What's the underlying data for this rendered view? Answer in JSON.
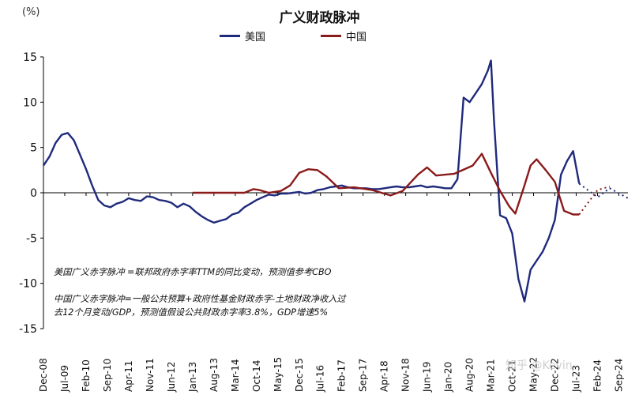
{
  "chart_data": {
    "type": "line",
    "title": "广义财政脉冲",
    "unit_label": "(%)",
    "ylim": [
      -15,
      15
    ],
    "y_ticks": [
      15,
      10,
      5,
      0,
      -5,
      -10,
      -15
    ],
    "x_ticks": [
      "Dec-08",
      "Jul-09",
      "Feb-10",
      "Sep-10",
      "Apr-11",
      "Nov-11",
      "Jun-12",
      "Jan-13",
      "Aug-13",
      "Mar-14",
      "Oct-14",
      "May-15",
      "Dec-15",
      "Jul-16",
      "Feb-17",
      "Sep-17",
      "Apr-18",
      "Nov-18",
      "Jun-19",
      "Jan-20",
      "Aug-20",
      "Mar-21",
      "Oct-21",
      "May-22",
      "Dec-22",
      "Jul-23",
      "Feb-24",
      "Sep-24"
    ],
    "x_range": [
      "2008-12",
      "2024-12"
    ],
    "grid": false,
    "legend_position": "top",
    "series": [
      {
        "name": "美国",
        "color": "#1f2a7c",
        "points": [
          [
            "2008-12",
            3.0
          ],
          [
            "2009-02",
            4.0
          ],
          [
            "2009-04",
            5.5
          ],
          [
            "2009-06",
            6.4
          ],
          [
            "2009-08",
            6.6
          ],
          [
            "2009-10",
            5.8
          ],
          [
            "2009-12",
            4.2
          ],
          [
            "2010-02",
            2.6
          ],
          [
            "2010-04",
            0.8
          ],
          [
            "2010-06",
            -0.8
          ],
          [
            "2010-08",
            -1.4
          ],
          [
            "2010-10",
            -1.6
          ],
          [
            "2010-12",
            -1.2
          ],
          [
            "2011-02",
            -1.0
          ],
          [
            "2011-04",
            -0.6
          ],
          [
            "2011-06",
            -0.8
          ],
          [
            "2011-08",
            -0.9
          ],
          [
            "2011-10",
            -0.4
          ],
          [
            "2011-12",
            -0.5
          ],
          [
            "2012-02",
            -0.8
          ],
          [
            "2012-04",
            -0.9
          ],
          [
            "2012-06",
            -1.1
          ],
          [
            "2012-08",
            -1.6
          ],
          [
            "2012-10",
            -1.2
          ],
          [
            "2012-12",
            -1.5
          ],
          [
            "2013-02",
            -2.1
          ],
          [
            "2013-04",
            -2.6
          ],
          [
            "2013-06",
            -3.0
          ],
          [
            "2013-08",
            -3.3
          ],
          [
            "2013-10",
            -3.1
          ],
          [
            "2013-12",
            -2.9
          ],
          [
            "2014-02",
            -2.4
          ],
          [
            "2014-04",
            -2.2
          ],
          [
            "2014-06",
            -1.6
          ],
          [
            "2014-08",
            -1.2
          ],
          [
            "2014-10",
            -0.8
          ],
          [
            "2014-12",
            -0.5
          ],
          [
            "2015-02",
            -0.2
          ],
          [
            "2015-04",
            -0.3
          ],
          [
            "2015-06",
            -0.1
          ],
          [
            "2015-08",
            -0.1
          ],
          [
            "2015-10",
            0.0
          ],
          [
            "2015-12",
            0.1
          ],
          [
            "2016-02",
            -0.1
          ],
          [
            "2016-04",
            0.0
          ],
          [
            "2016-06",
            0.3
          ],
          [
            "2016-08",
            0.4
          ],
          [
            "2016-10",
            0.6
          ],
          [
            "2016-12",
            0.7
          ],
          [
            "2017-02",
            0.8
          ],
          [
            "2017-04",
            0.6
          ],
          [
            "2017-06",
            0.5
          ],
          [
            "2017-08",
            0.5
          ],
          [
            "2017-10",
            0.5
          ],
          [
            "2017-12",
            0.4
          ],
          [
            "2018-02",
            0.4
          ],
          [
            "2018-04",
            0.5
          ],
          [
            "2018-06",
            0.6
          ],
          [
            "2018-08",
            0.7
          ],
          [
            "2018-10",
            0.6
          ],
          [
            "2018-12",
            0.6
          ],
          [
            "2019-02",
            0.7
          ],
          [
            "2019-04",
            0.8
          ],
          [
            "2019-06",
            0.6
          ],
          [
            "2019-08",
            0.7
          ],
          [
            "2019-10",
            0.6
          ],
          [
            "2019-12",
            0.5
          ],
          [
            "2020-02",
            0.5
          ],
          [
            "2020-04",
            1.5
          ],
          [
            "2020-06",
            10.5
          ],
          [
            "2020-08",
            10.0
          ],
          [
            "2020-10",
            11.0
          ],
          [
            "2020-12",
            12.0
          ],
          [
            "2021-02",
            13.5
          ],
          [
            "2021-03",
            14.6
          ],
          [
            "2021-04",
            8.0
          ],
          [
            "2021-06",
            -2.5
          ],
          [
            "2021-08",
            -2.8
          ],
          [
            "2021-10",
            -4.5
          ],
          [
            "2021-12",
            -9.5
          ],
          [
            "2022-02",
            -12.0
          ],
          [
            "2022-04",
            -8.5
          ],
          [
            "2022-06",
            -7.5
          ],
          [
            "2022-08",
            -6.5
          ],
          [
            "2022-10",
            -5.0
          ],
          [
            "2022-12",
            -3.0
          ],
          [
            "2023-02",
            2.0
          ],
          [
            "2023-04",
            3.5
          ],
          [
            "2023-06",
            4.6
          ],
          [
            "2023-08",
            1.0
          ]
        ]
      },
      {
        "name": "中国",
        "color": "#8b1a1a",
        "points": [
          [
            "2013-01",
            0.0
          ],
          [
            "2014-06",
            0.0
          ],
          [
            "2014-09",
            0.4
          ],
          [
            "2014-11",
            0.3
          ],
          [
            "2015-02",
            0.0
          ],
          [
            "2015-06",
            0.2
          ],
          [
            "2015-09",
            0.8
          ],
          [
            "2015-12",
            2.2
          ],
          [
            "2016-03",
            2.6
          ],
          [
            "2016-06",
            2.5
          ],
          [
            "2016-09",
            1.8
          ],
          [
            "2017-01",
            0.5
          ],
          [
            "2017-06",
            0.6
          ],
          [
            "2017-12",
            0.3
          ],
          [
            "2018-06",
            -0.3
          ],
          [
            "2018-10",
            0.2
          ],
          [
            "2019-03",
            2.0
          ],
          [
            "2019-06",
            2.8
          ],
          [
            "2019-09",
            1.9
          ],
          [
            "2020-03",
            2.1
          ],
          [
            "2020-09",
            3.0
          ],
          [
            "2020-12",
            4.3
          ],
          [
            "2021-03",
            2.2
          ],
          [
            "2021-06",
            0.2
          ],
          [
            "2021-09",
            -1.5
          ],
          [
            "2021-11",
            -2.3
          ],
          [
            "2022-02",
            0.8
          ],
          [
            "2022-04",
            3.0
          ],
          [
            "2022-06",
            3.7
          ],
          [
            "2022-09",
            2.5
          ],
          [
            "2022-12",
            1.2
          ],
          [
            "2023-03",
            -2.0
          ],
          [
            "2023-06",
            -2.4
          ],
          [
            "2023-08",
            -2.4
          ]
        ],
        "forecast_points": [
          [
            "2023-08",
            -2.4
          ],
          [
            "2024-02",
            0.3
          ],
          [
            "2024-06",
            0.7
          ]
        ]
      }
    ],
    "us_forecast_points": [
      [
        "2023-08",
        1.0
      ],
      [
        "2024-02",
        -0.5
      ],
      [
        "2024-06",
        0.5
      ],
      [
        "2024-12",
        -0.6
      ]
    ]
  },
  "notes": {
    "us": "美国广义赤字脉冲 =联邦政府赤字率TTM的同比变动，预测值参考CBO",
    "cn_line1": "中国广义赤字脉冲=一般公共预算+政府性基金财政赤字-土地财政净收入过",
    "cn_line2": "去12个月变动/GDP，预测值假设公共财政赤字率3.8%，GDP增速5%"
  },
  "watermark": "知乎 @Kevin"
}
